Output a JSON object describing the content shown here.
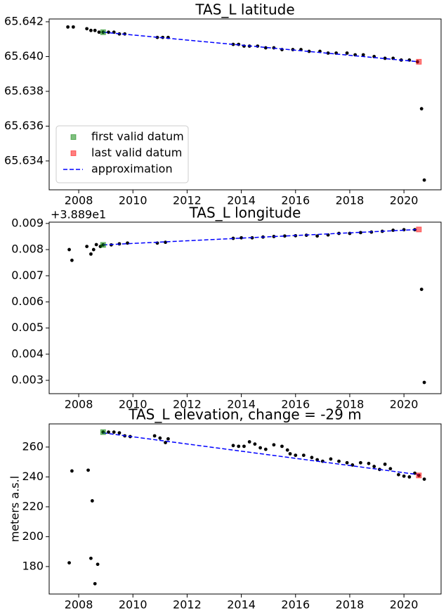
{
  "chart_data": [
    {
      "type": "scatter",
      "title": "TAS_L latitude",
      "xlim": [
        2006.91,
        2021.37
      ],
      "xticks": [
        2008,
        2010,
        2012,
        2014,
        2016,
        2018,
        2020
      ],
      "ylim": [
        65.63234,
        65.64216
      ],
      "yticks": [
        65.634,
        65.636,
        65.638,
        {
          "value": 65.64,
          "label": "65.640"
        },
        65.642
      ],
      "legend": "lower left",
      "series": [
        {
          "style": "dot",
          "color": "#000000",
          "x": [
            2007.6,
            2007.8,
            2008.3,
            2008.45,
            2008.6,
            2008.75,
            2008.9,
            2009.1,
            2009.3,
            2009.5,
            2009.7,
            2010.9,
            2011.1,
            2011.3,
            2013.7,
            2013.9,
            2014.1,
            2014.3,
            2014.6,
            2014.9,
            2015.2,
            2015.5,
            2015.9,
            2016.2,
            2016.5,
            2016.9,
            2017.2,
            2017.5,
            2017.9,
            2018.2,
            2018.5,
            2018.9,
            2019.3,
            2019.6,
            2019.9,
            2020.2,
            2020.5,
            2020.65,
            2020.75
          ],
          "values": [
            65.6417,
            65.6417,
            65.6416,
            65.6415,
            65.6415,
            65.6414,
            65.6414,
            65.6414,
            65.6414,
            65.6413,
            65.6413,
            65.6411,
            65.6411,
            65.6411,
            65.6407,
            65.6407,
            65.6406,
            65.6406,
            65.6406,
            65.6405,
            65.6405,
            65.6404,
            65.6404,
            65.6404,
            65.6403,
            65.6403,
            65.6402,
            65.6402,
            65.6402,
            65.6401,
            65.6401,
            65.64,
            65.6399,
            65.6399,
            65.6398,
            65.6398,
            65.6397,
            65.637,
            65.6329
          ]
        },
        {
          "name": "first valid datum",
          "style": "square",
          "color": "#008000",
          "x": [
            2008.9
          ],
          "values": [
            65.6414
          ]
        },
        {
          "name": "last valid datum",
          "style": "square",
          "color": "#ff0000",
          "x": [
            2020.55
          ],
          "values": [
            65.6397
          ]
        },
        {
          "name": "approximation",
          "style": "line",
          "color": "#0000ff",
          "x": [
            2008.9,
            2020.55
          ],
          "values": [
            65.6414,
            65.6397
          ]
        }
      ]
    },
    {
      "type": "scatter",
      "title": "TAS_L longitude",
      "offset_text": "+3.889e1",
      "xlim": [
        2006.91,
        2021.37
      ],
      "xticks": [
        2008,
        2010,
        2012,
        2014,
        2016,
        2018,
        2020
      ],
      "ylim": [
        0.00249,
        0.00905
      ],
      "yticks": [
        0.003,
        0.004,
        0.005,
        0.006,
        0.007,
        0.008,
        0.009
      ],
      "series": [
        {
          "style": "dot",
          "color": "#000000",
          "x": [
            2007.65,
            2007.75,
            2008.3,
            2008.45,
            2008.55,
            2008.65,
            2008.8,
            2008.9,
            2009.2,
            2009.5,
            2009.8,
            2010.9,
            2011.2,
            2013.7,
            2014.0,
            2014.4,
            2014.8,
            2015.2,
            2015.6,
            2016.0,
            2016.4,
            2016.8,
            2017.2,
            2017.6,
            2018.0,
            2018.4,
            2018.8,
            2019.2,
            2019.6,
            2020.0,
            2020.4,
            2020.65,
            2020.75
          ],
          "values": [
            0.008,
            0.00759,
            0.00812,
            0.00783,
            0.008,
            0.00819,
            0.00812,
            0.00818,
            0.00818,
            0.00822,
            0.00825,
            0.00825,
            0.00828,
            0.00843,
            0.00845,
            0.00845,
            0.00848,
            0.0085,
            0.00852,
            0.00853,
            0.00855,
            0.00852,
            0.00856,
            0.00862,
            0.00862,
            0.00865,
            0.00867,
            0.0087,
            0.00874,
            0.00876,
            0.00876,
            0.00648,
            0.00292
          ]
        },
        {
          "style": "square",
          "color": "#008000",
          "x": [
            2008.9
          ],
          "values": [
            0.00818
          ]
        },
        {
          "style": "square",
          "color": "#ff0000",
          "x": [
            2020.55
          ],
          "values": [
            0.00877
          ]
        },
        {
          "style": "line",
          "color": "#0000ff",
          "x": [
            2008.9,
            2020.55
          ],
          "values": [
            0.00818,
            0.00877
          ]
        }
      ]
    },
    {
      "type": "scatter",
      "title": "TAS_L elevation, change = -29 m",
      "ylabel": "meters a.s.l",
      "xlim": [
        2006.91,
        2021.37
      ],
      "xticks": [
        2008,
        2010,
        2012,
        2014,
        2016,
        2018,
        2020
      ],
      "ylim": [
        161.6,
        275.5
      ],
      "yticks": [
        180,
        200,
        220,
        240,
        260
      ],
      "series": [
        {
          "style": "dot",
          "color": "#000000",
          "x": [
            2007.65,
            2007.75,
            2008.35,
            2008.45,
            2008.5,
            2008.6,
            2008.7,
            2008.9,
            2009.1,
            2009.3,
            2009.5,
            2009.7,
            2009.9,
            2010.8,
            2011.0,
            2011.2,
            2011.3,
            2013.7,
            2013.9,
            2014.1,
            2014.3,
            2014.5,
            2014.7,
            2014.9,
            2015.2,
            2015.5,
            2015.7,
            2015.8,
            2016.0,
            2016.3,
            2016.6,
            2016.8,
            2017.0,
            2017.3,
            2017.6,
            2017.9,
            2018.1,
            2018.4,
            2018.7,
            2018.9,
            2019.1,
            2019.3,
            2019.5,
            2019.8,
            2020.0,
            2020.2,
            2020.4,
            2020.55,
            2020.75
          ],
          "values": [
            182.5,
            244,
            244.5,
            185.5,
            224,
            168.5,
            181.5,
            270,
            270,
            270,
            269.5,
            267.5,
            267,
            267.5,
            266,
            263,
            265.5,
            261,
            260.5,
            260.5,
            263.5,
            262,
            259.5,
            258.5,
            261.5,
            260.5,
            258,
            255.5,
            254.5,
            254.5,
            253,
            251.5,
            250.5,
            252,
            250.5,
            249.5,
            248,
            249.5,
            249,
            247,
            245,
            248.5,
            245.5,
            241.5,
            240.5,
            240,
            242.5,
            241,
            238.5
          ]
        },
        {
          "style": "square",
          "color": "#008000",
          "x": [
            2008.9
          ],
          "values": [
            270
          ]
        },
        {
          "style": "square",
          "color": "#ff0000",
          "x": [
            2020.55
          ],
          "values": [
            241
          ]
        },
        {
          "style": "line",
          "color": "#0000ff",
          "x": [
            2008.9,
            2020.55
          ],
          "values": [
            269.5,
            241.5
          ]
        }
      ]
    }
  ]
}
